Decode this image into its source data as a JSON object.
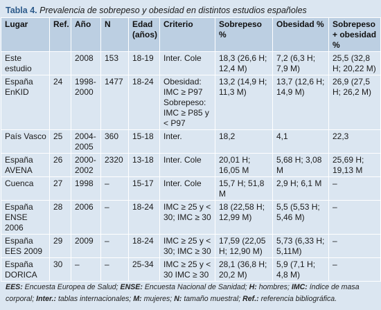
{
  "caption": {
    "label": "Tabla 4.",
    "title": "Prevalencia de sobrepeso y obesidad en distintos estudios españoles"
  },
  "table": {
    "headers": [
      "Lugar",
      "Ref.",
      "Año",
      "N",
      "Edad (años)",
      "Criterio",
      "Sobrepeso %",
      "Obesidad %",
      "Sobrepeso + obesidad %"
    ],
    "rows": [
      [
        "Este estudio",
        "",
        "2008",
        "153",
        "18-19",
        "Inter. Cole",
        "18,3 (26,6 H; 12,4 M)",
        "7,2 (6,3 H; 7,9 M)",
        "25,5 (32,8 H; 20,22 M)"
      ],
      [
        "España EnKID",
        "24",
        "1998-2000",
        "1477",
        "18-24",
        "Obesidad: IMC ≥ P97 Sobrepeso: IMC ≥ P85 y < P97",
        "13,2 (14,9 H; 11,3 M)",
        "13,7 (12,6 H; 14,9 M)",
        "26,9 (27,5 H; 26,2 M)"
      ],
      [
        "País Vasco",
        "25",
        "2004-2005",
        "360",
        "15-18",
        "Inter.",
        "18,2",
        "4,1",
        "22,3"
      ],
      [
        "España AVENA",
        "26",
        "2000-2002",
        "2320",
        "13-18",
        "Inter. Cole",
        "20,01 H; 16,05 M",
        "5,68 H; 3,08 M",
        "25,69 H; 19,13 M"
      ],
      [
        "Cuenca",
        "27",
        "1998",
        "–",
        "15-17",
        "Inter. Cole",
        "15,7 H; 51,8 M",
        "2,9 H; 6,1 M",
        "–"
      ],
      [
        "España ENSE 2006",
        "28",
        "2006",
        "–",
        "18-24",
        "IMC ≥ 25 y < 30; IMC ≥ 30",
        "18 (22,58 H; 12,99 M)",
        "5,5 (5,53 H; 5,46 M)",
        "–"
      ],
      [
        "España EES 2009",
        "29",
        "2009",
        "–",
        "18-24",
        "IMC ≥ 25 y < 30; IMC ≥ 30",
        "17,59 (22,05 H; 12,90 M)",
        "5,73 (6,33 H; 5,11M)",
        "–"
      ],
      [
        "España DORICA",
        "30",
        "–",
        "–",
        "25-34",
        "IMC ≥ 25 y < 30 IMC ≥ 30",
        "28,1 (36,8 H; 20,2 M)",
        "5,9 (7,1 H; 4,8 M)",
        "–"
      ]
    ]
  },
  "footnote": {
    "items": [
      {
        "abbr": "EES:",
        "text": " Encuesta Europea de Salud; "
      },
      {
        "abbr": "ENSE:",
        "text": " Encuesta Nacional de Sanidad; "
      },
      {
        "abbr": "H:",
        "text": " hombres; "
      },
      {
        "abbr": "IMC:",
        "text": " índice de masa corporal; "
      },
      {
        "abbr": "Inter.:",
        "text": " tablas internacionales; "
      },
      {
        "abbr": "M:",
        "text": " mujeres; "
      },
      {
        "abbr": "N:",
        "text": " tamaño muestral; "
      },
      {
        "abbr": "Ref.:",
        "text": " referencia bibliográfica."
      }
    ]
  }
}
